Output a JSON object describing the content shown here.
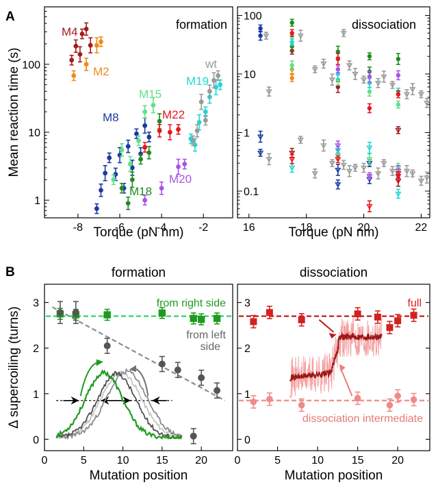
{
  "panel_labels": {
    "a": "A",
    "b": "B"
  },
  "colors": {
    "wt": "#999999",
    "M2": "#ef8c1a",
    "M4": "#a61b1b",
    "M8": "#1a3a9e",
    "M15": "#5fe08a",
    "M18": "#1e8c1e",
    "M19": "#22d6d6",
    "M20": "#a653e8",
    "M22": "#e8161c",
    "right": "#1f9a1f",
    "left": "#707070",
    "full": "#d42020",
    "inter": "#f08a8a"
  },
  "chart_data": [
    {
      "id": "A-left",
      "type": "scatter",
      "title": "formation",
      "xlabel": "Torque (pN nm)",
      "ylabel": "Mean reaction time (s)",
      "xlim": [
        -9.6,
        -0.6
      ],
      "ylim": [
        0.55,
        700
      ],
      "yscale": "log",
      "xticks": [
        -8,
        -6,
        -4,
        -2
      ],
      "yticks": [
        1,
        10,
        100
      ],
      "series": [
        {
          "name": "M4",
          "color": "#a61b1b",
          "x": [
            -8.3,
            -8.1,
            -7.9,
            -7.8,
            -7.6,
            -7.4
          ],
          "y": [
            115,
            185,
            140,
            280,
            330,
            190
          ]
        },
        {
          "name": "M2",
          "color": "#ef8c1a",
          "x": [
            -8.2,
            -7.6,
            -7.1,
            -6.9
          ],
          "y": [
            68,
            100,
            190,
            215
          ]
        },
        {
          "name": "M8",
          "color": "#1a3a9e",
          "x": [
            -7.1,
            -6.9,
            -6.7,
            -6.5,
            -6.2,
            -6.0,
            -5.8,
            -5.6,
            -5.4,
            -5.2,
            -5.0,
            -4.8,
            -4.6
          ],
          "y": [
            0.75,
            1.4,
            2.5,
            4.2,
            2.4,
            4.6,
            1.5,
            6.2,
            3.0,
            9.5,
            4.8,
            12.5,
            8.5
          ]
        },
        {
          "name": "M15",
          "color": "#5fe08a",
          "x": [
            -6.3,
            -5.9,
            -5.5,
            -5.1,
            -4.8,
            -4.4
          ],
          "y": [
            2.0,
            5.5,
            3.4,
            7.5,
            20.0,
            25.0
          ]
        },
        {
          "name": "M18",
          "color": "#1e8c1e",
          "x": [
            -5.9,
            -5.6,
            -5.4,
            -5.0,
            -4.6,
            -4.1
          ],
          "y": [
            1.5,
            0.9,
            2.0,
            4.0,
            5.0,
            14.5
          ]
        },
        {
          "name": "M20",
          "color": "#a653e8",
          "x": [
            -4.8,
            -4.0,
            -3.2,
            -2.9
          ],
          "y": [
            1.0,
            1.5,
            3.1,
            3.4
          ]
        },
        {
          "name": "M22",
          "color": "#e8161c",
          "x": [
            -4.8,
            -4.1,
            -3.6,
            -3.2
          ],
          "y": [
            6.0,
            10.5,
            10.0,
            11.0
          ]
        },
        {
          "name": "M19",
          "color": "#22d6d6",
          "x": [
            -2.6,
            -2.4,
            -2.2,
            -1.9,
            -1.7,
            -1.4,
            -1.2
          ],
          "y": [
            8.0,
            6.5,
            14.0,
            20.0,
            33.0,
            46.0,
            50.0
          ]
        },
        {
          "name": "wt",
          "color": "#999999",
          "x": [
            -2.5,
            -2.3,
            -2.1,
            -1.9,
            -1.7,
            -1.5,
            -1.3
          ],
          "y": [
            7.5,
            10.5,
            28.0,
            15.0,
            40.0,
            58.0,
            68.0
          ]
        }
      ],
      "labels": [
        "formation",
        "M4",
        "M2",
        "M8",
        "M15",
        "M18",
        "M20",
        "M22",
        "M19",
        "wt"
      ]
    },
    {
      "id": "A-right",
      "type": "scatter",
      "title": "dissociation",
      "xlabel": "Torque (pN nm)",
      "xlim": [
        15.6,
        22.3
      ],
      "ylim": [
        0.035,
        140
      ],
      "yscale": "log",
      "xticks": [
        16,
        18,
        20,
        22
      ],
      "yticks": [
        0.1,
        1,
        10,
        100
      ],
      "ytick_labels": [
        "0.1",
        "1",
        "10",
        "100"
      ],
      "series": [
        {
          "name": "M8",
          "color": "#1a3a9e",
          "x": [
            16.4,
            16.4,
            16.4,
            16.4,
            19.1,
            19.1,
            20.2,
            20.2
          ],
          "y": [
            60,
            45,
            0.85,
            0.45,
            0.13,
            0.23,
            0.3,
            0.16
          ]
        },
        {
          "name": "M2",
          "color": "#ef8c1a",
          "x": [
            17.5,
            17.5
          ],
          "y": [
            8.5,
            12.0
          ]
        },
        {
          "name": "M4",
          "color": "#a61b1b",
          "x": [
            17.5,
            17.5,
            19.1,
            21.2,
            21.2,
            21.2
          ],
          "y": [
            25.0,
            0.45,
            6.0,
            1.1,
            0.2,
            0.15
          ]
        },
        {
          "name": "M15",
          "color": "#5fe08a",
          "x": [
            17.5,
            17.5,
            19.1,
            19.1,
            20.2,
            20.2,
            21.2,
            21.2
          ],
          "y": [
            45.0,
            14.0,
            8.0,
            0.4,
            5.0,
            0.35,
            3.0,
            0.25
          ]
        },
        {
          "name": "M18",
          "color": "#1e8c1e",
          "x": [
            17.5,
            17.5,
            19.1,
            20.2,
            20.2,
            21.2
          ],
          "y": [
            75.0,
            30.0,
            24.0,
            20.0,
            11.0,
            18.0
          ]
        },
        {
          "name": "M19",
          "color": "#22d6d6",
          "x": [
            17.5,
            17.5,
            19.1,
            19.1,
            20.2,
            20.2,
            21.2,
            21.2
          ],
          "y": [
            35.0,
            0.25,
            10.0,
            0.5,
            7.0,
            0.55,
            5.0,
            0.09
          ]
        },
        {
          "name": "M20",
          "color": "#a653e8",
          "x": [
            19.1,
            19.1,
            20.2,
            20.2,
            21.2,
            21.2
          ],
          "y": [
            12.0,
            0.6,
            9.0,
            0.18,
            9.5,
            0.22
          ]
        },
        {
          "name": "M22",
          "color": "#e8161c",
          "x": [
            17.5,
            17.5,
            19.1,
            19.1,
            20.2,
            20.2,
            21.2,
            21.2
          ],
          "y": [
            50.0,
            0.35,
            18.0,
            0.35,
            2.6,
            0.055,
            4.5,
            0.18
          ]
        },
        {
          "name": "wt",
          "color": "#999999",
          "x": [
            16.6,
            16.7,
            17.8,
            18.3,
            18.6,
            18.9,
            19.3,
            19.5,
            19.7,
            20.0,
            20.5,
            20.7,
            21.0,
            21.5,
            21.7,
            22.0,
            22.2,
            16.7,
            17.8,
            18.3,
            18.6,
            18.9,
            19.3,
            19.5,
            19.7,
            20.0,
            20.5,
            20.7,
            21.0,
            21.5,
            21.7,
            22.0,
            22.2
          ],
          "y": [
            45.0,
            5.0,
            45.0,
            12.0,
            15.0,
            8.0,
            50.0,
            14.0,
            10.0,
            8.0,
            7.0,
            9.0,
            6.5,
            4.5,
            5.5,
            4.5,
            3.2,
            0.35,
            0.75,
            0.2,
            0.6,
            0.3,
            0.28,
            0.22,
            0.25,
            0.25,
            0.2,
            0.3,
            0.22,
            0.22,
            0.2,
            0.15,
            0.17
          ]
        }
      ],
      "labels": [
        "dissociation"
      ]
    },
    {
      "id": "B-left",
      "type": "line",
      "title": "formation",
      "xlabel": "Mutation position",
      "ylabel": "Δ supercoiling (turns)",
      "xlim": [
        0,
        24
      ],
      "ylim": [
        -0.25,
        3.4
      ],
      "xticks": [
        0,
        5,
        10,
        15,
        20
      ],
      "yticks": [
        0,
        1,
        2,
        3
      ],
      "series": [
        {
          "name": "from right side",
          "color": "#1f9a1f",
          "x": [
            2,
            4,
            8,
            15,
            19,
            20,
            22
          ],
          "y": [
            2.75,
            2.73,
            2.73,
            2.77,
            2.65,
            2.63,
            2.65
          ]
        },
        {
          "name": "from left side",
          "color": "#555555",
          "x": [
            2,
            4,
            8,
            15,
            17,
            20,
            22,
            19
          ],
          "y": [
            2.78,
            2.78,
            2.05,
            1.65,
            1.52,
            1.35,
            1.07,
            0.07
          ]
        }
      ],
      "lines": {
        "right_fit_y": 2.7,
        "left_fit": [
          [
            1,
            2.9
          ],
          [
            23,
            0.85
          ]
        ]
      },
      "labels": [
        "from right side",
        "from left",
        "side"
      ]
    },
    {
      "id": "B-right",
      "type": "line",
      "title": "dissociation",
      "xlabel": "Mutation position",
      "xlim": [
        0,
        24
      ],
      "ylim": [
        -0.25,
        3.4
      ],
      "xticks": [
        0,
        5,
        10,
        15,
        20
      ],
      "yticks": [
        0,
        1,
        2,
        3
      ],
      "series": [
        {
          "name": "full",
          "color": "#d42020",
          "x": [
            2,
            4,
            8,
            15,
            17.5,
            19,
            20,
            22
          ],
          "y": [
            2.58,
            2.78,
            2.62,
            2.75,
            2.68,
            2.45,
            2.6,
            2.72
          ]
        },
        {
          "name": "dissociation intermediate",
          "color": "#f08a8a",
          "x": [
            2,
            4,
            8,
            15,
            19,
            20,
            22
          ],
          "y": [
            0.82,
            0.88,
            0.75,
            0.9,
            0.75,
            0.95,
            0.87
          ]
        }
      ],
      "lines": {
        "full_y": 2.7,
        "inter_y": 0.85
      },
      "labels": [
        "full",
        "dissociation intermediate"
      ]
    }
  ]
}
